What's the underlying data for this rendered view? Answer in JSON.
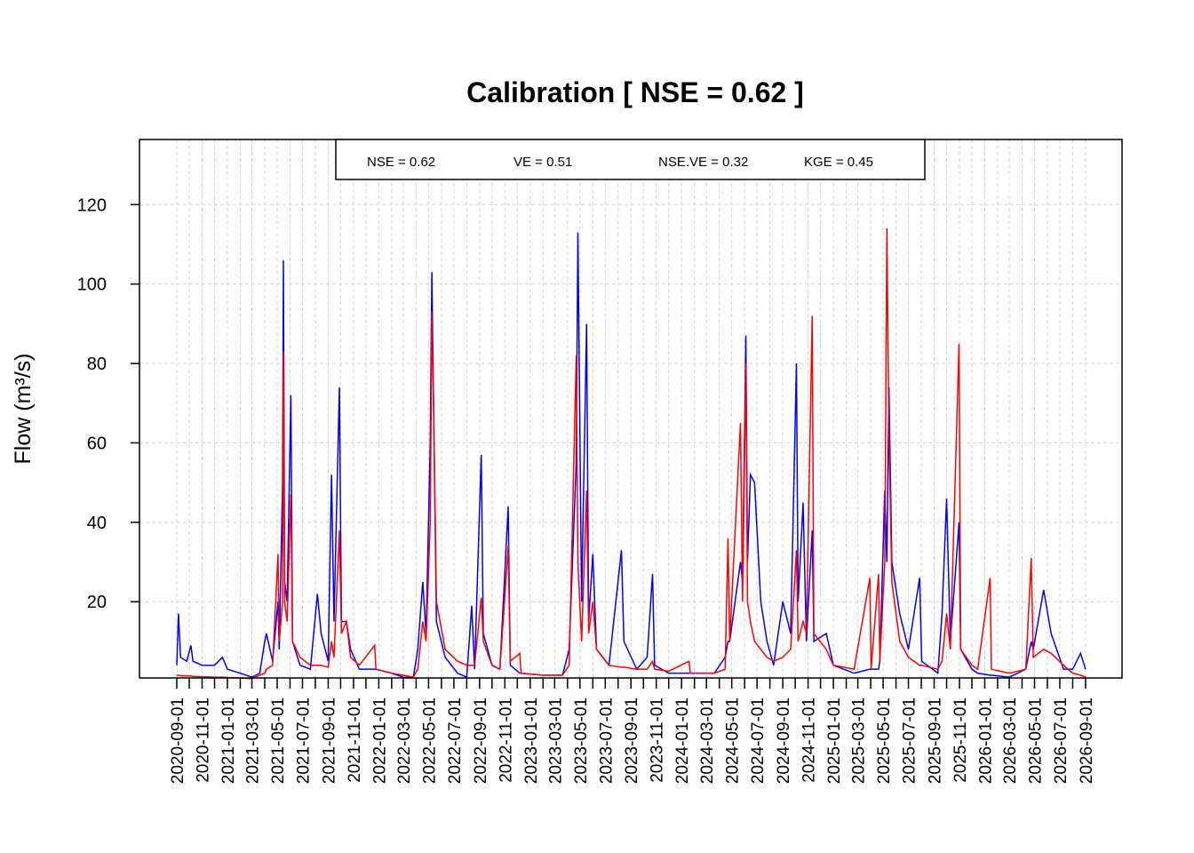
{
  "chart_data": {
    "type": "line",
    "title": "Calibration [ NSE  =   0.62 ]",
    "y_label": "Flow (m³/s)",
    "annotations": [
      "NSE = 0.62",
      "VE = 0.51",
      "NSE.VE = 0.32",
      "KGE = 0.45"
    ],
    "grid": true,
    "xlim": [
      "2020-06-03",
      "2026-11-28"
    ],
    "ylim": [
      0.8,
      136.4
    ],
    "yticks": [
      20,
      40,
      60,
      80,
      100,
      120
    ],
    "xticks": [
      "2020-09-01",
      "2020-11-01",
      "2021-01-01",
      "2021-03-01",
      "2021-05-01",
      "2021-07-01",
      "2021-09-01",
      "2021-11-01",
      "2022-01-01",
      "2022-03-01",
      "2022-05-01",
      "2022-07-01",
      "2022-09-01",
      "2022-11-01",
      "2023-01-01",
      "2023-03-01",
      "2023-05-01",
      "2023-07-01",
      "2023-09-01",
      "2023-11-01",
      "2024-01-01",
      "2024-03-01",
      "2024-05-01",
      "2024-07-01",
      "2024-09-01",
      "2024-11-01",
      "2025-01-01",
      "2025-03-01",
      "2025-05-01",
      "2025-07-01",
      "2025-09-01",
      "2025-11-01",
      "2026-01-01",
      "2026-03-01",
      "2026-05-01",
      "2026-07-01",
      "2026-09-01"
    ],
    "xminor_ticks": [
      "2020-10-01",
      "2020-12-01",
      "2021-02-01",
      "2021-04-01",
      "2021-06-01",
      "2021-08-01",
      "2021-10-01",
      "2021-12-01",
      "2022-02-01",
      "2022-04-01",
      "2022-06-01",
      "2022-08-01",
      "2022-10-01",
      "2022-12-01",
      "2023-02-01",
      "2023-04-01",
      "2023-06-01",
      "2023-08-01",
      "2023-10-01",
      "2023-12-01",
      "2024-02-01",
      "2024-04-01",
      "2024-06-01",
      "2024-08-01",
      "2024-10-01",
      "2024-12-01",
      "2025-02-01",
      "2025-04-01",
      "2025-06-01",
      "2025-08-01",
      "2025-10-01",
      "2025-12-01",
      "2026-02-01",
      "2026-04-01",
      "2026-06-01",
      "2026-08-01"
    ],
    "x": [
      "2020-09-01",
      "2020-09-05",
      "2020-09-10",
      "2020-09-25",
      "2020-10-05",
      "2020-10-10",
      "2020-11-01",
      "2020-12-01",
      "2020-12-20",
      "2021-01-01",
      "2021-02-01",
      "2021-03-01",
      "2021-03-20",
      "2021-04-01",
      "2021-04-05",
      "2021-04-20",
      "2021-05-03",
      "2021-05-06",
      "2021-05-14",
      "2021-05-16",
      "2021-05-19",
      "2021-05-25",
      "2021-06-03",
      "2021-06-07",
      "2021-06-25",
      "2021-07-20",
      "2021-08-06",
      "2021-08-15",
      "2021-09-01",
      "2021-09-09",
      "2021-09-15",
      "2021-09-28",
      "2021-10-03",
      "2021-10-15",
      "2021-10-25",
      "2021-11-15",
      "2021-12-22",
      "2021-12-25",
      "2022-02-01",
      "2022-03-01",
      "2022-03-25",
      "2022-04-05",
      "2022-04-17",
      "2022-04-25",
      "2022-05-05",
      "2022-05-09",
      "2022-05-13",
      "2022-05-20",
      "2022-06-10",
      "2022-07-10",
      "2022-08-01",
      "2022-08-13",
      "2022-08-20",
      "2022-09-05",
      "2022-09-10",
      "2022-10-01",
      "2022-10-20",
      "2022-11-09",
      "2022-11-14",
      "2022-12-07",
      "2022-12-10",
      "2023-02-01",
      "2023-03-20",
      "2023-04-05",
      "2023-04-22",
      "2023-04-26",
      "2023-05-05",
      "2023-05-17",
      "2023-05-22",
      "2023-06-01",
      "2023-06-10",
      "2023-07-10",
      "2023-08-09",
      "2023-08-15",
      "2023-09-15",
      "2023-10-10",
      "2023-10-23",
      "2023-10-28",
      "2023-12-01",
      "2024-01-19",
      "2024-01-22",
      "2024-03-20",
      "2024-04-15",
      "2024-04-22",
      "2024-04-26",
      "2024-05-22",
      "2024-05-27",
      "2024-06-04",
      "2024-06-08",
      "2024-06-15",
      "2024-06-25",
      "2024-07-10",
      "2024-07-25",
      "2024-08-10",
      "2024-09-01",
      "2024-09-20",
      "2024-10-04",
      "2024-10-08",
      "2024-10-20",
      "2024-10-28",
      "2024-11-11",
      "2024-11-15",
      "2024-12-15",
      "2025-01-01",
      "2025-02-20",
      "2025-03-30",
      "2025-04-02",
      "2025-04-20",
      "2025-04-23",
      "2025-05-05",
      "2025-05-10",
      "2025-05-15",
      "2025-05-22",
      "2025-06-10",
      "2025-07-01",
      "2025-07-28",
      "2025-08-02",
      "2025-09-10",
      "2025-09-20",
      "2025-10-01",
      "2025-10-10",
      "2025-10-31",
      "2025-11-04",
      "2025-12-01",
      "2025-12-15",
      "2026-01-14",
      "2026-01-17",
      "2026-03-01",
      "2026-04-10",
      "2026-04-23",
      "2026-04-28",
      "2026-05-23",
      "2026-06-10",
      "2026-07-10",
      "2026-08-01",
      "2026-08-20",
      "2026-09-01"
    ],
    "series": [
      {
        "color": "#0000ff",
        "values": [
          4,
          17,
          6,
          5,
          9,
          5,
          4,
          4,
          6,
          3,
          2,
          1,
          2,
          10,
          12,
          5,
          20,
          8,
          50,
          106,
          25,
          20,
          72,
          10,
          4,
          3,
          22,
          12,
          5,
          52,
          15,
          74,
          15,
          15,
          8,
          3,
          3,
          3,
          2,
          1,
          0.8,
          8,
          25,
          12,
          60,
          103,
          70,
          15,
          6,
          2,
          1,
          19,
          3,
          57,
          12,
          4,
          3,
          44,
          4,
          2,
          2,
          1.5,
          1.5,
          8,
          55,
          113,
          20,
          90,
          15,
          32,
          8,
          4,
          33,
          10,
          3,
          6,
          27,
          4,
          2,
          2,
          2,
          2,
          6,
          10,
          10,
          30,
          25,
          87,
          30,
          52,
          50,
          20,
          10,
          4,
          20,
          12,
          80,
          20,
          45,
          10,
          38,
          10,
          12,
          4,
          2,
          3,
          3,
          3,
          5,
          48,
          30,
          74,
          30,
          17,
          8,
          26,
          5,
          2,
          17,
          46,
          10,
          40,
          8,
          3,
          2,
          1.5,
          1.5,
          1,
          3,
          10,
          8,
          23,
          12,
          3,
          3,
          7,
          3
        ]
      },
      {
        "color": "#ff0000",
        "values": [
          1.5,
          1.5,
          1.4,
          1.3,
          1.3,
          1.2,
          1.1,
          1,
          1,
          0.9,
          0.8,
          0.6,
          1.5,
          2,
          3,
          4,
          32,
          10,
          20,
          83,
          20,
          15,
          47,
          10,
          6,
          4,
          4,
          4,
          3.5,
          10,
          6,
          38,
          12,
          15,
          6,
          4,
          9,
          3,
          2,
          1.5,
          1,
          3,
          15,
          10,
          40,
          93,
          70,
          20,
          8,
          5,
          4,
          4,
          4,
          21,
          10,
          4,
          3,
          34,
          5,
          7,
          2,
          1.5,
          1.5,
          4,
          82,
          30,
          10,
          48,
          12,
          20,
          8,
          4,
          3.5,
          3.5,
          3,
          3,
          5,
          3,
          2.5,
          5,
          2,
          2,
          3,
          36,
          10,
          65,
          20,
          80,
          20,
          15,
          10,
          8,
          6,
          5,
          6,
          8,
          33,
          10,
          15,
          12,
          92,
          12,
          8,
          4,
          3,
          26,
          3,
          27,
          5,
          30,
          114,
          62,
          25,
          10,
          6,
          4,
          4,
          3,
          5,
          17,
          8,
          85,
          8,
          4,
          3,
          26,
          3,
          2,
          3,
          31,
          6,
          8,
          7,
          4,
          2,
          1.5,
          1
        ]
      }
    ]
  }
}
